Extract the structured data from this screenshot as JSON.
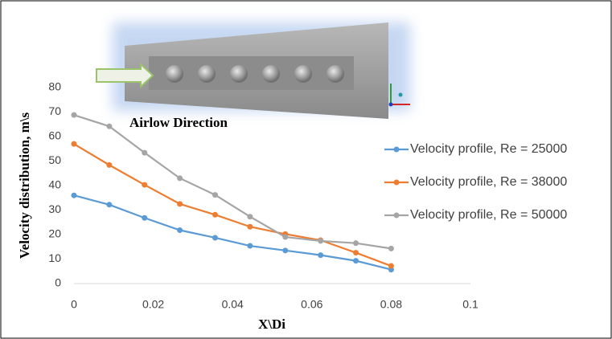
{
  "chart_data": {
    "type": "line",
    "x_label": "X\\Di",
    "y_label": "Velocity distribution, m\\s",
    "annotation": "Airlow Direction",
    "x": [
      0,
      0.0089,
      0.0178,
      0.0267,
      0.0356,
      0.0444,
      0.0533,
      0.0622,
      0.0711,
      0.08
    ],
    "series": [
      {
        "name": "Velocity profile, Re = 25000",
        "color": "#5b9bd5",
        "values": [
          36,
          32.2,
          26.8,
          21.8,
          18.7,
          15.4,
          13.5,
          11.6,
          9.3,
          5.7
        ]
      },
      {
        "name": "Velocity profile, Re = 38000",
        "color": "#ed7d31",
        "values": [
          57,
          48.4,
          40.3,
          32.5,
          28.1,
          23.2,
          20.2,
          17.7,
          12.6,
          7.2
        ]
      },
      {
        "name": "Velocity profile, Re = 50000",
        "color": "#a5a5a5",
        "values": [
          68.8,
          64.2,
          53.4,
          43,
          36.2,
          27.3,
          19,
          17.4,
          16.5,
          14.3
        ]
      }
    ],
    "xlim": [
      0,
      0.1
    ],
    "xticks": [
      0,
      0.02,
      0.04,
      0.06,
      0.08,
      0.1
    ],
    "ylim": [
      0,
      80
    ],
    "yticks": [
      0,
      10,
      20,
      30,
      40,
      50,
      60,
      70,
      80
    ],
    "grid": false,
    "legend": "right"
  }
}
